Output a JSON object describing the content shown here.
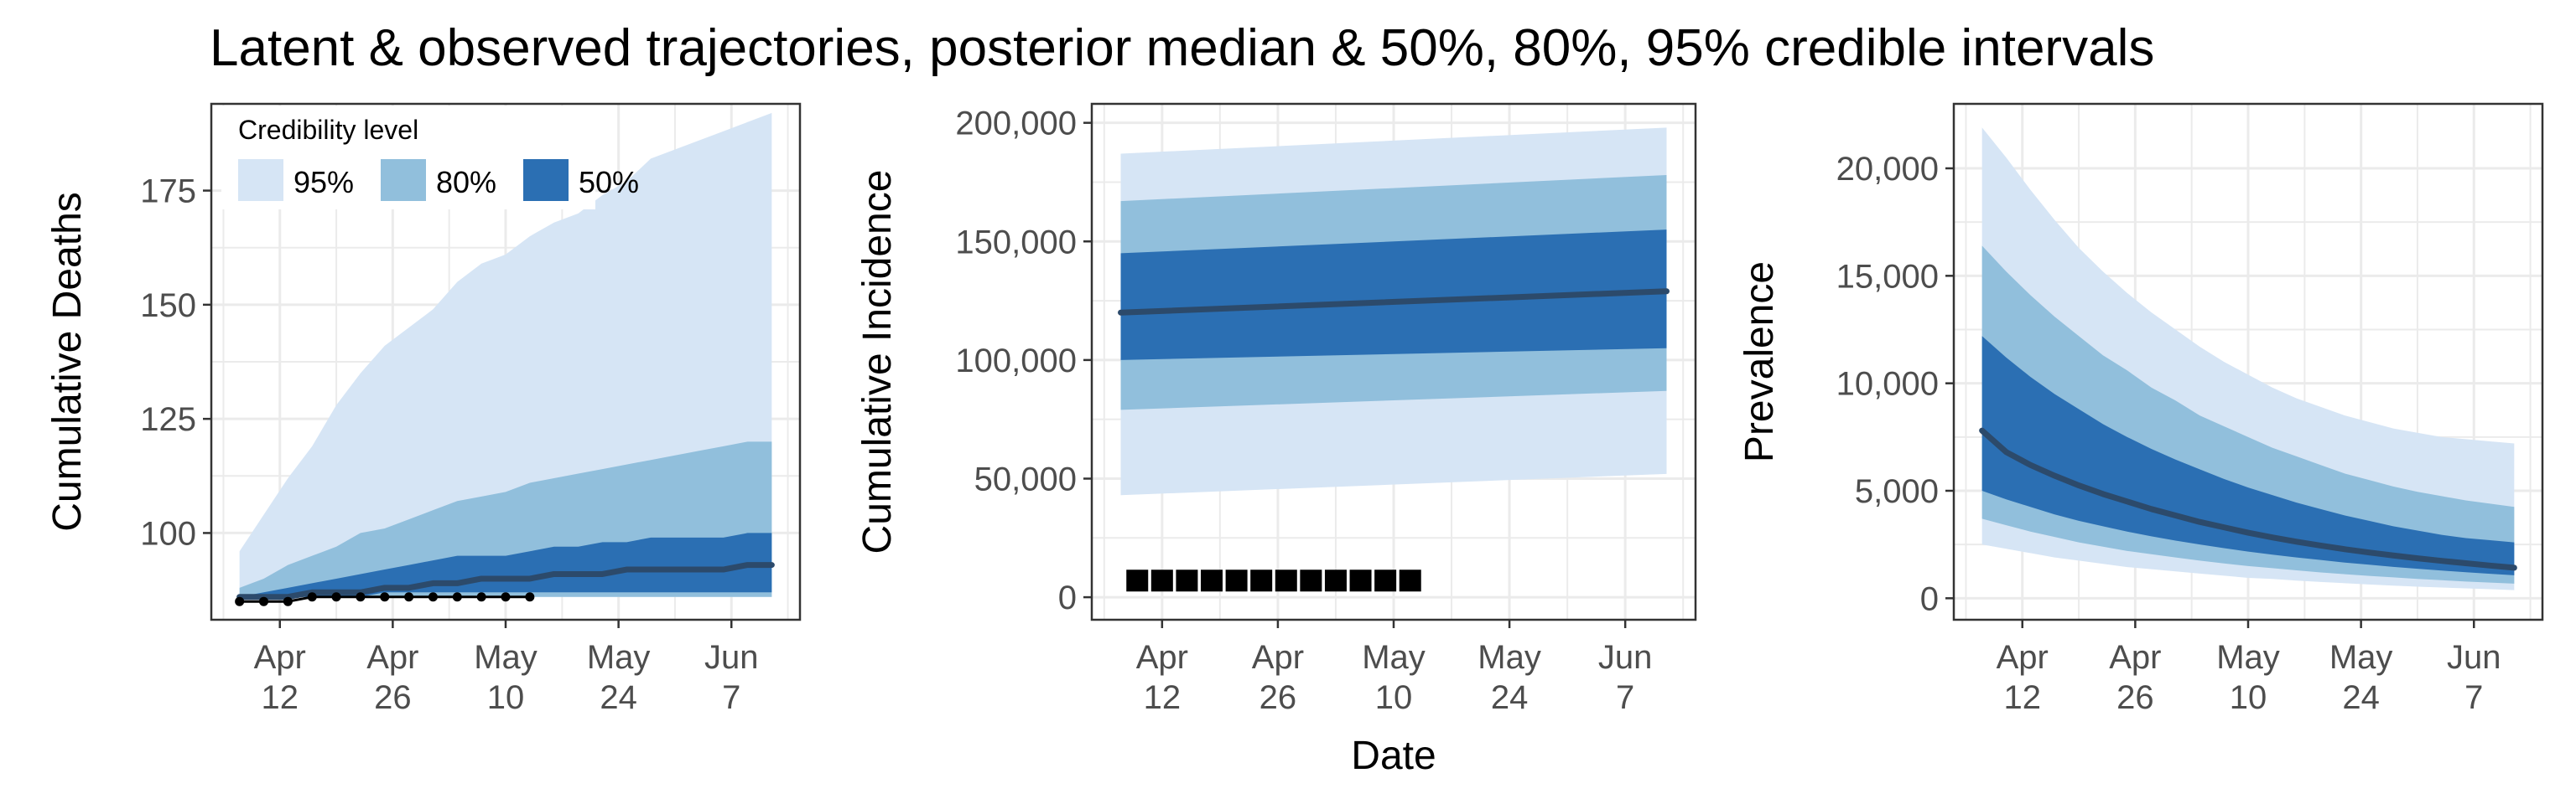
{
  "title": "Latent & observed trajectories, posterior median & 50%, 80%, 95% credible intervals",
  "xlabel": "Date",
  "legend": {
    "title": "Credibility level",
    "items": [
      {
        "label": "95%",
        "color": "#d6e5f5"
      },
      {
        "label": "80%",
        "color": "#91bfdc"
      },
      {
        "label": "50%",
        "color": "#2b6fb3"
      }
    ]
  },
  "colors": {
    "median": "#2c4a6b",
    "observed": "#000000",
    "grid": "#ebebeb",
    "panel_border": "#333333"
  },
  "x_ticks": [
    {
      "day": 12,
      "l1": "Apr",
      "l2": "12"
    },
    {
      "day": 26,
      "l1": "Apr",
      "l2": "26"
    },
    {
      "day": 40,
      "l1": "May",
      "l2": "10"
    },
    {
      "day": 54,
      "l1": "May",
      "l2": "24"
    },
    {
      "day": 68,
      "l1": "Jun",
      "l2": "7"
    }
  ],
  "chart_data": [
    {
      "type": "area",
      "ylabel": "Cumulative Deaths",
      "xlim_days": [
        3.5,
        76.5
      ],
      "ylim": [
        81,
        194
      ],
      "y_ticks": [
        {
          "v": 100,
          "label": "100"
        },
        {
          "v": 125,
          "label": "125"
        },
        {
          "v": 150,
          "label": "150"
        },
        {
          "v": 175,
          "label": "175"
        }
      ],
      "x_days": [
        7,
        10,
        13,
        16,
        19,
        22,
        25,
        28,
        31,
        34,
        37,
        40,
        43,
        46,
        49,
        52,
        55,
        58,
        61,
        64,
        67,
        70,
        73
      ],
      "bands": {
        "95": {
          "lower": [
            86,
            86,
            86,
            86,
            86,
            86,
            86,
            86,
            86,
            86,
            86,
            86,
            86,
            86,
            86,
            86,
            86,
            86,
            86,
            86,
            86,
            86,
            86
          ],
          "upper": [
            96,
            104,
            112,
            119,
            128,
            135,
            141,
            145,
            149,
            155,
            159,
            161,
            165,
            168,
            170,
            174,
            177,
            182,
            184,
            186,
            188,
            190,
            192
          ]
        },
        "80": {
          "lower": [
            86,
            86,
            86,
            86,
            86,
            86,
            86,
            86,
            86,
            86,
            86,
            86,
            86,
            86,
            86,
            86,
            86,
            86,
            86,
            86,
            86,
            86,
            86
          ],
          "upper": [
            88,
            90,
            93,
            95,
            97,
            100,
            101,
            103,
            105,
            107,
            108,
            109,
            111,
            112,
            113,
            114,
            115,
            116,
            117,
            118,
            119,
            120,
            120
          ]
        },
        "50": {
          "lower": [
            86,
            86,
            86,
            86,
            86,
            86,
            87,
            87,
            87,
            87,
            87,
            87,
            87,
            87,
            87,
            87,
            87,
            87,
            87,
            87,
            87,
            87,
            87
          ],
          "upper": [
            86,
            87,
            88,
            89,
            90,
            91,
            92,
            93,
            94,
            95,
            95,
            95,
            96,
            97,
            97,
            98,
            98,
            99,
            99,
            99,
            99,
            100,
            100
          ]
        }
      },
      "median": [
        86,
        86,
        86,
        87,
        87,
        87,
        88,
        88,
        89,
        89,
        90,
        90,
        90,
        91,
        91,
        91,
        92,
        92,
        92,
        92,
        92,
        93,
        93
      ],
      "observed": {
        "style": "line-points",
        "x_days": [
          7,
          10,
          13,
          16,
          19,
          22,
          25,
          28,
          31,
          34,
          37,
          40,
          43
        ],
        "y": [
          85,
          85,
          85,
          86,
          86,
          86,
          86,
          86,
          86,
          86,
          86,
          86,
          86
        ]
      }
    },
    {
      "type": "area",
      "ylabel": "Cumulative Incidence",
      "xlim_days": [
        3.5,
        76.5
      ],
      "ylim": [
        -9500,
        208000
      ],
      "y_ticks": [
        {
          "v": 0,
          "label": "0"
        },
        {
          "v": 50000,
          "label": "50,000"
        },
        {
          "v": 100000,
          "label": "100,000"
        },
        {
          "v": 150000,
          "label": "150,000"
        },
        {
          "v": 200000,
          "label": "200,000"
        }
      ],
      "x_days": [
        7,
        73
      ],
      "bands": {
        "95": {
          "lower": [
            43000,
            52000
          ],
          "upper": [
            187000,
            198000
          ]
        },
        "80": {
          "lower": [
            79000,
            87000
          ],
          "upper": [
            167000,
            178000
          ]
        },
        "50": {
          "lower": [
            100000,
            105000
          ],
          "upper": [
            145000,
            155000
          ]
        }
      },
      "median": [
        120000,
        129000
      ],
      "observed": {
        "style": "squares",
        "x_days": [
          9,
          12,
          15,
          18,
          21,
          24,
          27,
          30,
          33,
          36,
          39,
          42
        ],
        "y": [
          7000,
          7000,
          7000,
          7000,
          7000,
          7000,
          7000,
          7000,
          7000,
          7000,
          7000,
          7000
        ]
      }
    },
    {
      "type": "area",
      "ylabel": "Prevalence",
      "xlim_days": [
        3.5,
        76.5
      ],
      "ylim": [
        -1000,
        23000
      ],
      "y_ticks": [
        {
          "v": 0,
          "label": "0"
        },
        {
          "v": 5000,
          "label": "5,000"
        },
        {
          "v": 10000,
          "label": "10,000"
        },
        {
          "v": 15000,
          "label": "15,000"
        },
        {
          "v": 20000,
          "label": "20,000"
        }
      ],
      "x_days": [
        7,
        10,
        13,
        16,
        19,
        22,
        25,
        28,
        31,
        34,
        37,
        40,
        43,
        46,
        49,
        52,
        55,
        58,
        61,
        64,
        67,
        70,
        73
      ],
      "bands": {
        "95": {
          "lower": [
            2500,
            2300,
            2100,
            1900,
            1750,
            1600,
            1450,
            1350,
            1250,
            1150,
            1050,
            950,
            900,
            820,
            760,
            700,
            640,
            590,
            540,
            500,
            460,
            420,
            380
          ],
          "upper": [
            21900,
            20500,
            19000,
            17600,
            16300,
            15200,
            14200,
            13300,
            12500,
            11700,
            11000,
            10400,
            9800,
            9300,
            8900,
            8500,
            8200,
            7900,
            7700,
            7500,
            7400,
            7300,
            7200
          ]
        },
        "80": {
          "lower": [
            3700,
            3400,
            3100,
            2850,
            2600,
            2400,
            2200,
            2050,
            1900,
            1750,
            1620,
            1500,
            1400,
            1300,
            1200,
            1120,
            1040,
            970,
            900,
            840,
            780,
            730,
            680
          ],
          "upper": [
            16400,
            15200,
            14100,
            13100,
            12200,
            11300,
            10600,
            9800,
            9200,
            8500,
            8000,
            7500,
            7000,
            6600,
            6200,
            5800,
            5500,
            5200,
            4950,
            4750,
            4550,
            4400,
            4250
          ]
        },
        "50": {
          "lower": [
            5000,
            4600,
            4250,
            3900,
            3600,
            3350,
            3100,
            2880,
            2680,
            2500,
            2330,
            2170,
            2030,
            1900,
            1780,
            1660,
            1560,
            1460,
            1370,
            1290,
            1210,
            1140,
            1070
          ],
          "upper": [
            12200,
            11200,
            10300,
            9500,
            8800,
            8100,
            7500,
            6950,
            6450,
            6000,
            5550,
            5150,
            4800,
            4450,
            4150,
            3850,
            3600,
            3350,
            3150,
            2950,
            2800,
            2700,
            2600
          ]
        }
      },
      "median": [
        7800,
        6800,
        6200,
        5700,
        5250,
        4850,
        4500,
        4150,
        3850,
        3550,
        3300,
        3050,
        2830,
        2630,
        2450,
        2280,
        2130,
        1990,
        1860,
        1740,
        1630,
        1520,
        1420
      ]
    }
  ]
}
